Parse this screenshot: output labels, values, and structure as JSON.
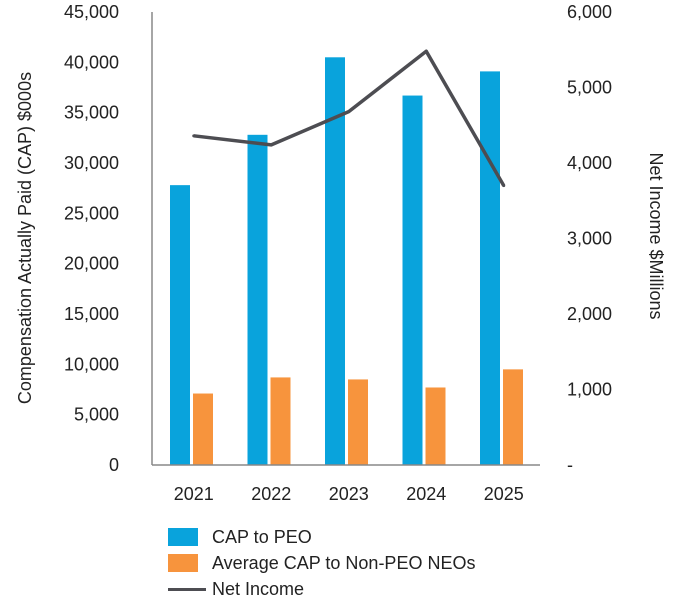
{
  "colors": {
    "peo": "#09a3dc",
    "neo": "#f7943d",
    "line": "#4d4d52",
    "axis": "#888888"
  },
  "chart_data": {
    "type": "bar",
    "categories": [
      "2021",
      "2022",
      "2023",
      "2024",
      "2025"
    ],
    "series": [
      {
        "name": "CAP to PEO",
        "axis": "left",
        "kind": "bar",
        "values": [
          27800,
          32800,
          40500,
          36700,
          39100
        ]
      },
      {
        "name": "Average CAP to Non-PEO NEOs",
        "axis": "left",
        "kind": "bar",
        "values": [
          7100,
          8700,
          8500,
          7700,
          9500
        ]
      },
      {
        "name": "Net Income",
        "axis": "right",
        "kind": "line",
        "values": [
          4360,
          4240,
          4680,
          5480,
          3700
        ]
      }
    ],
    "ylabel": "Compensation Actually Paid (CAP) $000s",
    "y2label": "Net Income $Millions",
    "ylim": [
      0,
      45000
    ],
    "y2lim": [
      0,
      6000
    ],
    "yticks": [
      "0",
      "5,000",
      "10,000",
      "15,000",
      "20,000",
      "25,000",
      "30,000",
      "35,000",
      "40,000",
      "45,000"
    ],
    "y2ticks": [
      "-",
      "1,000",
      "2,000",
      "3,000",
      "4,000",
      "5,000",
      "6,000"
    ],
    "legend": [
      "CAP to PEO",
      "Average CAP to Non-PEO NEOs",
      "Net Income"
    ]
  }
}
